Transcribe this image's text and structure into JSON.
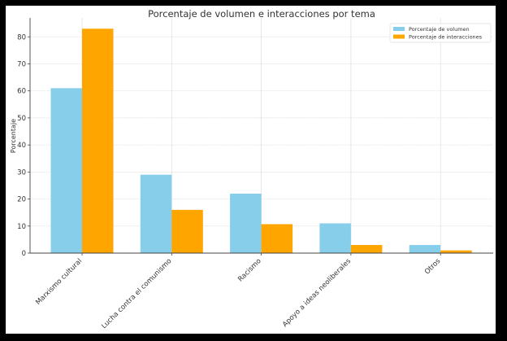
{
  "chart_data": {
    "type": "bar",
    "title": "Porcentaje de volumen e interacciones por tema",
    "xlabel": "",
    "ylabel": "Porcentaje",
    "categories": [
      "Marxismo cultural",
      "Lucha contra el comunismo",
      "Racismo",
      "Apoyo a ideas neoliberales",
      "Otros"
    ],
    "series": [
      {
        "name": "Porcentaje de volumen",
        "color": "#87CEEB",
        "values": [
          61,
          29,
          22,
          11,
          3
        ]
      },
      {
        "name": "Porcentaje de interacciones",
        "color": "#FFA500",
        "values": [
          83,
          16,
          10.7,
          3,
          1
        ]
      }
    ],
    "ylim": [
      0,
      87
    ],
    "yticks": [
      0,
      10,
      20,
      30,
      40,
      50,
      60,
      70,
      80
    ],
    "grid": true,
    "legend": "top-right"
  }
}
